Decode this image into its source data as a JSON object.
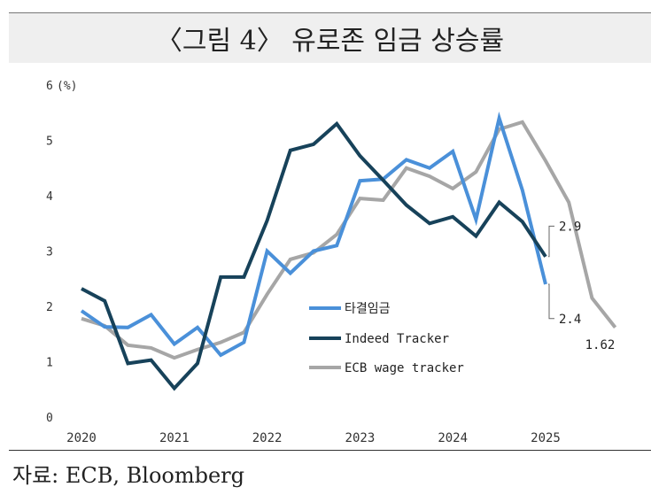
{
  "header": {
    "title": "〈그림 4〉 유로존 임금 상승률"
  },
  "footer": {
    "source": "자료: ECB, Bloomberg"
  },
  "chart_data": {
    "type": "line",
    "title": "〈그림 4〉 유로존 임금 상승률",
    "ylabel": "(%)",
    "xlabel": "",
    "ylim": [
      0,
      6
    ],
    "y_ticks": [
      "0",
      "1",
      "2",
      "3",
      "4",
      "5",
      "6"
    ],
    "x_ticks": [
      "2020",
      "2021",
      "2022",
      "2023",
      "2024",
      "2025"
    ],
    "x_range": [
      2020,
      2025.75
    ],
    "grid": false,
    "legend": "center-right",
    "series": [
      {
        "name": "타결임금",
        "color": "#4a90d9",
        "x": [
          2020.0,
          2020.25,
          2020.5,
          2020.75,
          2021.0,
          2021.25,
          2021.5,
          2021.75,
          2022.0,
          2022.25,
          2022.5,
          2022.75,
          2023.0,
          2023.25,
          2023.5,
          2023.75,
          2024.0,
          2024.25,
          2024.5,
          2024.75,
          2025.0
        ],
        "values": [
          1.92,
          1.63,
          1.62,
          1.85,
          1.32,
          1.62,
          1.12,
          1.35,
          3.0,
          2.6,
          3.0,
          3.1,
          4.27,
          4.3,
          4.65,
          4.5,
          4.8,
          3.57,
          5.4,
          4.1,
          2.4
        ]
      },
      {
        "name": "Indeed Tracker",
        "color": "#17425a",
        "x": [
          2020.0,
          2020.25,
          2020.5,
          2020.75,
          2021.0,
          2021.25,
          2021.5,
          2021.75,
          2022.0,
          2022.25,
          2022.5,
          2022.75,
          2023.0,
          2023.25,
          2023.5,
          2023.75,
          2024.0,
          2024.25,
          2024.5,
          2024.75,
          2025.0
        ],
        "values": [
          2.32,
          2.1,
          0.97,
          1.03,
          0.52,
          0.97,
          2.53,
          2.53,
          3.55,
          4.82,
          4.93,
          5.3,
          4.72,
          4.28,
          3.83,
          3.5,
          3.62,
          3.27,
          3.88,
          3.53,
          2.9
        ]
      },
      {
        "name": "ECB wage tracker",
        "color": "#a6a6a6",
        "x": [
          2020.0,
          2020.25,
          2020.5,
          2020.75,
          2021.0,
          2021.25,
          2021.5,
          2021.75,
          2022.0,
          2022.25,
          2022.5,
          2022.75,
          2023.0,
          2023.25,
          2023.5,
          2023.75,
          2024.0,
          2024.25,
          2024.5,
          2024.75,
          2025.0,
          2025.25,
          2025.5,
          2025.75
        ],
        "values": [
          1.78,
          1.65,
          1.3,
          1.25,
          1.07,
          1.22,
          1.35,
          1.53,
          2.22,
          2.85,
          2.97,
          3.3,
          3.95,
          3.92,
          4.5,
          4.35,
          4.13,
          4.43,
          5.2,
          5.33,
          4.63,
          3.88,
          2.15,
          1.62
        ]
      }
    ],
    "annotations": [
      {
        "text": "2.9",
        "x": 2025.0,
        "y": 2.9,
        "series": "Indeed Tracker"
      },
      {
        "text": "2.4",
        "x": 2025.0,
        "y": 2.4,
        "series": "타결임금"
      },
      {
        "text": "1.62",
        "x": 2025.75,
        "y": 1.62,
        "series": "ECB wage tracker"
      }
    ]
  }
}
